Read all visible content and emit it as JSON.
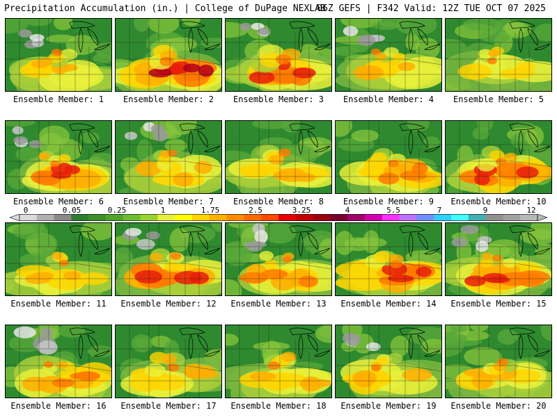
{
  "header": {
    "title_left": "Precipitation Accumulation (in.) | College of DuPage NEXLAB",
    "title_right": "06Z GEFS | F342 Valid: 12Z TUE OCT 07 2025"
  },
  "colorbar": {
    "tick_labels": [
      "0",
      "0.05",
      "0.25",
      "1",
      "1.75",
      "2.5",
      "3.25",
      "4",
      "5.5",
      "7",
      "9",
      "12"
    ],
    "colors": [
      "#d9d9d9",
      "#b0b0b0",
      "#8a8a8a",
      "#2e7d32",
      "#3e8e2a",
      "#4fa52b",
      "#6cbd2f",
      "#9ad22e",
      "#e8f03a",
      "#ffff00",
      "#ffd500",
      "#ffb000",
      "#ff8c00",
      "#ff6a00",
      "#ff4a00",
      "#e60000",
      "#c40000",
      "#9c0010",
      "#7a0030",
      "#a0006a",
      "#d000b0",
      "#ff30ff",
      "#c070ff",
      "#7090ff",
      "#30d0ff",
      "#40ffff",
      "#40b0b0",
      "#909090",
      "#a0a0a0",
      "#b8b8b8"
    ]
  },
  "panels": [
    {
      "label": "Ensemble Member: 1"
    },
    {
      "label": "Ensemble Member: 2"
    },
    {
      "label": "Ensemble Member: 3"
    },
    {
      "label": "Ensemble Member: 4"
    },
    {
      "label": "Ensemble Member: 5"
    },
    {
      "label": "Ensemble Member: 6"
    },
    {
      "label": "Ensemble Member: 7"
    },
    {
      "label": "Ensemble Member: 8"
    },
    {
      "label": "Ensemble Member: 9"
    },
    {
      "label": "Ensemble Member: 10"
    },
    {
      "label": "Ensemble Member: 11"
    },
    {
      "label": "Ensemble Member: 12"
    },
    {
      "label": "Ensemble Member: 13"
    },
    {
      "label": "Ensemble Member: 14"
    },
    {
      "label": "Ensemble Member: 15"
    },
    {
      "label": "Ensemble Member: 16"
    },
    {
      "label": "Ensemble Member: 17"
    },
    {
      "label": "Ensemble Member: 18"
    },
    {
      "label": "Ensemble Member: 19"
    },
    {
      "label": "Ensemble Member: 20"
    }
  ]
}
